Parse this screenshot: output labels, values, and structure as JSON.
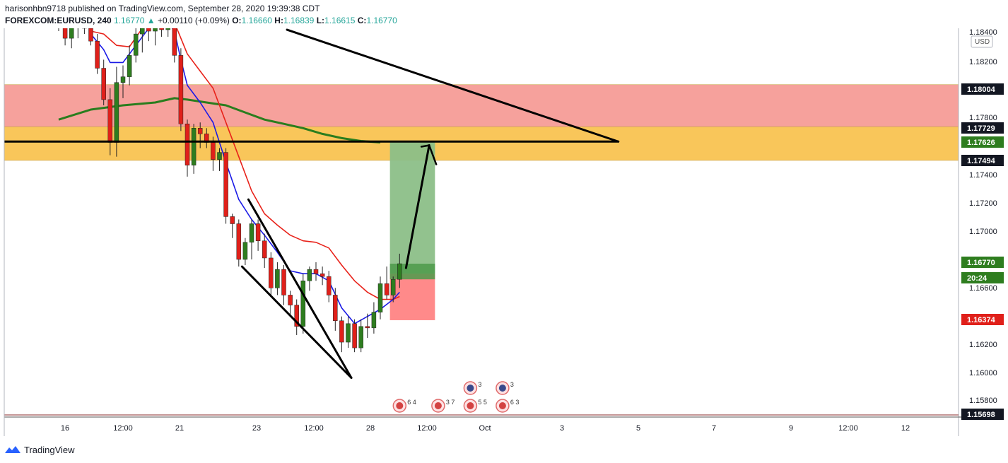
{
  "header": {
    "line1": "harisonhbn9718 published on TradingView.com, September 28, 2020 19:39:38 CDT",
    "symbol": "FOREXCOM:EURUSD, 240",
    "last": "1.16770",
    "change_icon": "triangle-up-icon",
    "change": "+0.00110 (+0.09%)",
    "o_label": "O:",
    "o": "1.16660",
    "h_label": "H:",
    "h": "1.16839",
    "l_label": "L:",
    "l": "1.16615",
    "c_label": "C:",
    "c": "1.16770"
  },
  "footer": {
    "brand": "TradingView",
    "logo_icon": "tradingview-logo-icon"
  },
  "colors": {
    "up": "#2e7d1f",
    "down": "#e0201a",
    "ema_fast": "#1a1ae6",
    "ema_slow": "#e8221a",
    "sma_long": "#2a7d1e",
    "zone_red": "#f6a19c",
    "zone_orange": "#f9c65a",
    "target_green": "#8cbf88",
    "stop_red": "#ff8a8a"
  },
  "chart_data": {
    "type": "candlestick",
    "currency": "USD",
    "ylim": [
      1.157,
      1.1842
    ],
    "y_ticks": [
      "1.18400",
      "1.18200",
      "1.17800",
      "1.17400",
      "1.17200",
      "1.17000",
      "1.16600",
      "1.16200",
      "1.16000",
      "1.15800"
    ],
    "x_ticks": [
      "16",
      "12:00",
      "21",
      "23",
      "12:00",
      "28",
      "12:00",
      "Oct",
      "3",
      "5",
      "7",
      "9",
      "12:00",
      "12"
    ],
    "price_labels": [
      {
        "text": "1.18004",
        "value": 1.18004,
        "style": "black"
      },
      {
        "text": "1.17729",
        "value": 1.17729,
        "style": "black"
      },
      {
        "text": "1.17626",
        "value": 1.17626,
        "style": "green"
      },
      {
        "text": "1.17494",
        "value": 1.17494,
        "style": "black"
      },
      {
        "text": "1.16770",
        "value": 1.1677,
        "style": "green"
      },
      {
        "text": "20:24",
        "value": 1.167,
        "style": "green"
      },
      {
        "text": "1.16374",
        "value": 1.16374,
        "style": "red"
      },
      {
        "text": "1.15698",
        "value": 1.15698,
        "style": "black"
      }
    ],
    "zones": [
      {
        "name": "resistance-zone",
        "from": 1.17729,
        "to": 1.18025,
        "color": "#f6a19c"
      },
      {
        "name": "support-zone",
        "from": 1.17494,
        "to": 1.17729,
        "color": "#f9c65a"
      }
    ],
    "position": {
      "entry": 1.167,
      "target": 1.17626,
      "stop": 1.16374
    },
    "candles": [
      {
        "t": 0,
        "o": 1.185,
        "h": 1.1856,
        "l": 1.184,
        "c": 1.1845
      },
      {
        "t": 1,
        "o": 1.1845,
        "h": 1.185,
        "l": 1.183,
        "c": 1.1835
      },
      {
        "t": 2,
        "o": 1.1835,
        "h": 1.1845,
        "l": 1.1828,
        "c": 1.1843
      },
      {
        "t": 3,
        "o": 1.1843,
        "h": 1.1855,
        "l": 1.1835,
        "c": 1.185
      },
      {
        "t": 4,
        "o": 1.185,
        "h": 1.1854,
        "l": 1.1838,
        "c": 1.1842
      },
      {
        "t": 5,
        "o": 1.1842,
        "h": 1.1848,
        "l": 1.183,
        "c": 1.1833
      },
      {
        "t": 6,
        "o": 1.1833,
        "h": 1.1838,
        "l": 1.181,
        "c": 1.1814
      },
      {
        "t": 7,
        "o": 1.1814,
        "h": 1.182,
        "l": 1.1788,
        "c": 1.1792
      },
      {
        "t": 8,
        "o": 1.1792,
        "h": 1.18,
        "l": 1.1753,
        "c": 1.1762
      },
      {
        "t": 9,
        "o": 1.1762,
        "h": 1.1815,
        "l": 1.1752,
        "c": 1.1804
      },
      {
        "t": 10,
        "o": 1.1804,
        "h": 1.1816,
        "l": 1.1793,
        "c": 1.1808
      },
      {
        "t": 11,
        "o": 1.1808,
        "h": 1.183,
        "l": 1.1802,
        "c": 1.1823
      },
      {
        "t": 12,
        "o": 1.1823,
        "h": 1.1845,
        "l": 1.1818,
        "c": 1.1838
      },
      {
        "t": 13,
        "o": 1.1838,
        "h": 1.185,
        "l": 1.1825,
        "c": 1.1845
      },
      {
        "t": 14,
        "o": 1.1845,
        "h": 1.1855,
        "l": 1.1833,
        "c": 1.184
      },
      {
        "t": 15,
        "o": 1.184,
        "h": 1.1852,
        "l": 1.183,
        "c": 1.1844
      },
      {
        "t": 16,
        "o": 1.1844,
        "h": 1.185,
        "l": 1.1836,
        "c": 1.1841
      },
      {
        "t": 17,
        "o": 1.1841,
        "h": 1.1849,
        "l": 1.1836,
        "c": 1.1845
      },
      {
        "t": 18,
        "o": 1.1845,
        "h": 1.185,
        "l": 1.1818,
        "c": 1.1823
      },
      {
        "t": 19,
        "o": 1.1823,
        "h": 1.1828,
        "l": 1.177,
        "c": 1.1775
      },
      {
        "t": 20,
        "o": 1.1775,
        "h": 1.1778,
        "l": 1.1738,
        "c": 1.1746
      },
      {
        "t": 21,
        "o": 1.1746,
        "h": 1.1775,
        "l": 1.174,
        "c": 1.1772
      },
      {
        "t": 22,
        "o": 1.1772,
        "h": 1.1776,
        "l": 1.1758,
        "c": 1.1768
      },
      {
        "t": 23,
        "o": 1.1768,
        "h": 1.1772,
        "l": 1.1758,
        "c": 1.1762
      },
      {
        "t": 24,
        "o": 1.1762,
        "h": 1.1766,
        "l": 1.1742,
        "c": 1.175
      },
      {
        "t": 25,
        "o": 1.175,
        "h": 1.1758,
        "l": 1.1742,
        "c": 1.1755
      },
      {
        "t": 26,
        "o": 1.1755,
        "h": 1.1758,
        "l": 1.1705,
        "c": 1.171
      },
      {
        "t": 27,
        "o": 1.171,
        "h": 1.1712,
        "l": 1.1695,
        "c": 1.1705
      },
      {
        "t": 28,
        "o": 1.1705,
        "h": 1.1708,
        "l": 1.1675,
        "c": 1.168
      },
      {
        "t": 29,
        "o": 1.168,
        "h": 1.1695,
        "l": 1.1676,
        "c": 1.1692
      },
      {
        "t": 30,
        "o": 1.1692,
        "h": 1.1708,
        "l": 1.168,
        "c": 1.1705
      },
      {
        "t": 31,
        "o": 1.1705,
        "h": 1.1708,
        "l": 1.1686,
        "c": 1.1693
      },
      {
        "t": 32,
        "o": 1.1693,
        "h": 1.1698,
        "l": 1.1674,
        "c": 1.1681
      },
      {
        "t": 33,
        "o": 1.1681,
        "h": 1.1685,
        "l": 1.1655,
        "c": 1.166
      },
      {
        "t": 34,
        "o": 1.166,
        "h": 1.1678,
        "l": 1.1655,
        "c": 1.1673
      },
      {
        "t": 35,
        "o": 1.1673,
        "h": 1.1676,
        "l": 1.1648,
        "c": 1.1655
      },
      {
        "t": 36,
        "o": 1.1655,
        "h": 1.1658,
        "l": 1.164,
        "c": 1.1648
      },
      {
        "t": 37,
        "o": 1.1648,
        "h": 1.1652,
        "l": 1.1627,
        "c": 1.1633
      },
      {
        "t": 38,
        "o": 1.1633,
        "h": 1.167,
        "l": 1.1628,
        "c": 1.1665
      },
      {
        "t": 39,
        "o": 1.1665,
        "h": 1.1675,
        "l": 1.1658,
        "c": 1.1673
      },
      {
        "t": 40,
        "o": 1.1673,
        "h": 1.1678,
        "l": 1.1665,
        "c": 1.167
      },
      {
        "t": 41,
        "o": 1.167,
        "h": 1.1675,
        "l": 1.1662,
        "c": 1.1668
      },
      {
        "t": 42,
        "o": 1.1668,
        "h": 1.1672,
        "l": 1.165,
        "c": 1.1655
      },
      {
        "t": 43,
        "o": 1.1655,
        "h": 1.166,
        "l": 1.163,
        "c": 1.1637
      },
      {
        "t": 44,
        "o": 1.1637,
        "h": 1.164,
        "l": 1.1615,
        "c": 1.1622
      },
      {
        "t": 45,
        "o": 1.1622,
        "h": 1.164,
        "l": 1.1618,
        "c": 1.1635
      },
      {
        "t": 46,
        "o": 1.1635,
        "h": 1.1638,
        "l": 1.1615,
        "c": 1.1618
      },
      {
        "t": 47,
        "o": 1.1618,
        "h": 1.1638,
        "l": 1.1615,
        "c": 1.1633
      },
      {
        "t": 48,
        "o": 1.1633,
        "h": 1.1642,
        "l": 1.1625,
        "c": 1.1632
      },
      {
        "t": 49,
        "o": 1.1632,
        "h": 1.165,
        "l": 1.1628,
        "c": 1.1643
      },
      {
        "t": 50,
        "o": 1.1643,
        "h": 1.1668,
        "l": 1.1638,
        "c": 1.1663
      },
      {
        "t": 51,
        "o": 1.1663,
        "h": 1.1675,
        "l": 1.1652,
        "c": 1.1655
      },
      {
        "t": 52,
        "o": 1.1655,
        "h": 1.1668,
        "l": 1.165,
        "c": 1.1666
      },
      {
        "t": 53,
        "o": 1.1666,
        "h": 1.1684,
        "l": 1.166,
        "c": 1.1677
      }
    ],
    "ema_fast": [
      [
        5,
        1.1838
      ],
      [
        7,
        1.1827
      ],
      [
        8,
        1.1818
      ],
      [
        10,
        1.1818
      ],
      [
        12,
        1.183
      ],
      [
        14,
        1.1842
      ],
      [
        17,
        1.1846
      ],
      [
        18,
        1.184
      ],
      [
        19,
        1.182
      ],
      [
        20,
        1.1802
      ],
      [
        22,
        1.179
      ],
      [
        24,
        1.1776
      ],
      [
        26,
        1.1748
      ],
      [
        28,
        1.1722
      ],
      [
        30,
        1.1708
      ],
      [
        32,
        1.1697
      ],
      [
        34,
        1.1685
      ],
      [
        36,
        1.1672
      ],
      [
        38,
        1.167
      ],
      [
        40,
        1.167
      ],
      [
        42,
        1.1665
      ],
      [
        44,
        1.1646
      ],
      [
        46,
        1.1635
      ],
      [
        48,
        1.164
      ],
      [
        50,
        1.1645
      ],
      [
        52,
        1.1652
      ],
      [
        53,
        1.1657
      ]
    ],
    "ema_slow": [
      [
        5,
        1.184
      ],
      [
        7,
        1.1838
      ],
      [
        9,
        1.183
      ],
      [
        11,
        1.1829
      ],
      [
        13,
        1.1842
      ],
      [
        16,
        1.1852
      ],
      [
        18,
        1.1846
      ],
      [
        20,
        1.1824
      ],
      [
        22,
        1.1812
      ],
      [
        24,
        1.18
      ],
      [
        26,
        1.1776
      ],
      [
        28,
        1.1752
      ],
      [
        30,
        1.1728
      ],
      [
        32,
        1.1712
      ],
      [
        34,
        1.1704
      ],
      [
        36,
        1.1697
      ],
      [
        38,
        1.1693
      ],
      [
        40,
        1.1692
      ],
      [
        42,
        1.1688
      ],
      [
        44,
        1.1676
      ],
      [
        46,
        1.1665
      ],
      [
        48,
        1.1657
      ],
      [
        50,
        1.1652
      ],
      [
        52,
        1.1652
      ],
      [
        53,
        1.1654
      ]
    ],
    "sma_long": [
      [
        0,
        1.1778
      ],
      [
        5,
        1.1785
      ],
      [
        10,
        1.1788
      ],
      [
        15,
        1.179
      ],
      [
        18,
        1.1793
      ],
      [
        20,
        1.1792
      ],
      [
        23,
        1.179
      ],
      [
        26,
        1.1788
      ],
      [
        29,
        1.1783
      ],
      [
        32,
        1.1778
      ],
      [
        35,
        1.1775
      ],
      [
        38,
        1.1772
      ],
      [
        41,
        1.1768
      ],
      [
        44,
        1.1765
      ],
      [
        47,
        1.1763
      ],
      [
        50,
        1.1762
      ]
    ],
    "events": [
      {
        "label": "6 4",
        "t": 53,
        "row": 2
      },
      {
        "label": "3 7",
        "t": 59,
        "row": 2
      },
      {
        "label": "3",
        "t": 64,
        "row": 1
      },
      {
        "label": "5 5",
        "t": 64,
        "row": 2
      },
      {
        "label": "3",
        "t": 69,
        "row": 1
      },
      {
        "label": "6 3",
        "t": 69,
        "row": 2
      }
    ]
  }
}
